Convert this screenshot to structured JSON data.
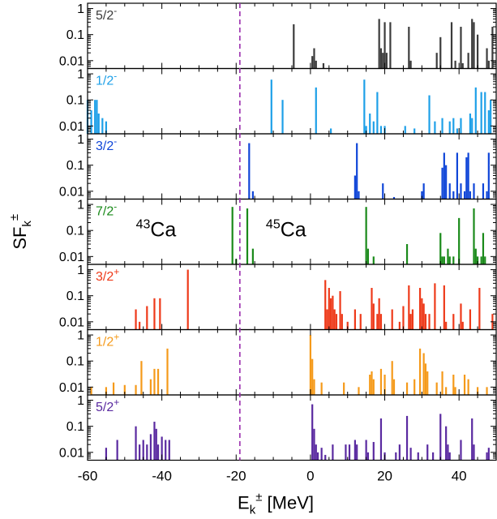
{
  "chart_data": {
    "type": "bar",
    "xlabel": "E_k^± [MeV]",
    "ylabel": "SF_k^±",
    "xlim": [
      -60,
      50
    ],
    "ylim": [
      0.005,
      1.6
    ],
    "yscale": "log",
    "x_ticks": [
      -60,
      -40,
      -20,
      0,
      20,
      40
    ],
    "x_tick_labels": [
      "-60",
      "-40",
      "-20",
      "0",
      "20",
      "40"
    ],
    "y_ticks": [
      0.01,
      0.1,
      1
    ],
    "y_tick_labels": [
      "0.01",
      "0.1",
      "1"
    ],
    "fermi_line_x": -19,
    "fermi_line_color": "#9b2fae",
    "annotations": [
      {
        "text": "43",
        "sup": true,
        "after": "Ca",
        "x": -47,
        "panel": 3
      },
      {
        "text": "45",
        "sup": true,
        "after": "Ca",
        "x": -12,
        "panel": 3
      }
    ],
    "panels": [
      {
        "label": "5/2",
        "parity": "-",
        "color": "#3c3c3c",
        "bars": [
          [
            -4.5,
            0.25
          ],
          [
            0.5,
            0.015
          ],
          [
            1,
            0.03
          ],
          [
            1.5,
            0.01
          ],
          [
            3.5,
            0.008
          ],
          [
            18.5,
            0.4
          ],
          [
            19,
            0.03
          ],
          [
            19.5,
            0.02
          ],
          [
            20,
            0.3
          ],
          [
            20.5,
            0.02
          ],
          [
            21.5,
            0.3
          ],
          [
            26.5,
            0.2
          ],
          [
            27,
            0.01
          ],
          [
            34,
            0.02
          ],
          [
            35,
            0.08
          ],
          [
            38,
            0.3
          ],
          [
            39,
            0.01
          ],
          [
            40.5,
            0.2
          ],
          [
            41,
            0.008
          ],
          [
            42.5,
            0.02
          ],
          [
            43.5,
            0.4
          ],
          [
            44,
            0.3
          ],
          [
            45,
            0.1
          ],
          [
            47.5,
            0.03
          ],
          [
            48,
            0.01
          ],
          [
            49,
            0.2
          ]
        ]
      },
      {
        "label": "1/2",
        "parity": "-",
        "color": "#1ea0e8",
        "bars": [
          [
            -60,
            0.1
          ],
          [
            -59,
            0.04
          ],
          [
            -58,
            0.1
          ],
          [
            -57.5,
            0.1
          ],
          [
            -57,
            0.03
          ],
          [
            -56,
            0.02
          ],
          [
            -55,
            0.015
          ],
          [
            -10.5,
            0.6
          ],
          [
            -7.5,
            0.1
          ],
          [
            1.5,
            0.3
          ],
          [
            5.5,
            0.008
          ],
          [
            14.5,
            0.6
          ],
          [
            15,
            0.01
          ],
          [
            16,
            0.03
          ],
          [
            17,
            0.015
          ],
          [
            18,
            0.2
          ],
          [
            19,
            0.01
          ],
          [
            20,
            0.01
          ],
          [
            25.5,
            0.01
          ],
          [
            28,
            0.008
          ],
          [
            32,
            0.15
          ],
          [
            33.5,
            0.015
          ],
          [
            35.5,
            0.02
          ],
          [
            37.5,
            0.015
          ],
          [
            38.5,
            0.02
          ],
          [
            39.5,
            0.008
          ],
          [
            40.5,
            0.02
          ],
          [
            43,
            0.03
          ],
          [
            43.5,
            0.02
          ],
          [
            44.5,
            0.3
          ],
          [
            46,
            0.2
          ],
          [
            47,
            0.2
          ],
          [
            48,
            0.04
          ],
          [
            48.5,
            0.1
          ]
        ]
      },
      {
        "label": "3/2",
        "parity": "-",
        "color": "#1046d8",
        "bars": [
          [
            -16.5,
            0.7
          ],
          [
            -15.5,
            0.01
          ],
          [
            12,
            0.04
          ],
          [
            12.5,
            0.7
          ],
          [
            13,
            0.01
          ],
          [
            19.5,
            0.02
          ],
          [
            22.5,
            0.006
          ],
          [
            30,
            0.01
          ],
          [
            30.5,
            0.02
          ],
          [
            35.5,
            0.08
          ],
          [
            36,
            0.3
          ],
          [
            36.5,
            0.1
          ],
          [
            37.5,
            0.02
          ],
          [
            38.5,
            0.01
          ],
          [
            39.5,
            0.3
          ],
          [
            40.5,
            0.02
          ],
          [
            41.5,
            0.01
          ],
          [
            42,
            0.2
          ],
          [
            42.5,
            0.3
          ],
          [
            43,
            0.01
          ],
          [
            44,
            0.02
          ],
          [
            46.5,
            0.02
          ],
          [
            47.5,
            0.01
          ],
          [
            48,
            0.3
          ]
        ]
      },
      {
        "label": "7/2",
        "parity": "-",
        "color": "#1a8a1a",
        "bars": [
          [
            -21,
            0.8
          ],
          [
            -20,
            0.008
          ],
          [
            -17,
            0.7
          ],
          [
            -15.5,
            0.02
          ],
          [
            15,
            0.8
          ],
          [
            15.5,
            0.02
          ],
          [
            17,
            0.01
          ],
          [
            26,
            0.03
          ],
          [
            35,
            0.08
          ],
          [
            35.5,
            0.01
          ],
          [
            36,
            0.01
          ],
          [
            37,
            0.02
          ],
          [
            37.5,
            0.01
          ],
          [
            38.5,
            0.01
          ],
          [
            40,
            0.3
          ],
          [
            44,
            0.7
          ],
          [
            44.5,
            0.02
          ],
          [
            45,
            0.01
          ],
          [
            46,
            0.01
          ],
          [
            46.5,
            0.08
          ],
          [
            47,
            0.01
          ]
        ]
      },
      {
        "label": "3/2",
        "parity": "+",
        "color": "#ee3a1a",
        "bars": [
          [
            -47,
            0.03
          ],
          [
            -46,
            0.01
          ],
          [
            -44,
            0.04
          ],
          [
            -42,
            0.08
          ],
          [
            -40.5,
            0.08
          ],
          [
            -33,
            1
          ],
          [
            4,
            0.4
          ],
          [
            4.5,
            0.03
          ],
          [
            5,
            0.2
          ],
          [
            5.5,
            0.08
          ],
          [
            6,
            0.1
          ],
          [
            6.5,
            0.03
          ],
          [
            7,
            0.02
          ],
          [
            8,
            0.15
          ],
          [
            8.5,
            0.02
          ],
          [
            10,
            0.01
          ],
          [
            12,
            0.03
          ],
          [
            13.5,
            0.02
          ],
          [
            16.5,
            0.2
          ],
          [
            17,
            0.05
          ],
          [
            18,
            0.02
          ],
          [
            18.5,
            0.08
          ],
          [
            19,
            0.02
          ],
          [
            22,
            0.03
          ],
          [
            24,
            0.01
          ],
          [
            25,
            0.04
          ],
          [
            26.5,
            0.25
          ],
          [
            27,
            0.02
          ],
          [
            27.5,
            0.03
          ],
          [
            29.5,
            0.2
          ],
          [
            30,
            0.08
          ],
          [
            30.5,
            0.05
          ],
          [
            31,
            0.02
          ],
          [
            32,
            0.02
          ],
          [
            33.5,
            0.3
          ],
          [
            36,
            0.25
          ],
          [
            36.5,
            0.01
          ],
          [
            38.5,
            0.02
          ],
          [
            40.5,
            0.05
          ],
          [
            41,
            0.01
          ],
          [
            43,
            0.03
          ],
          [
            45.5,
            0.2
          ],
          [
            49,
            0.02
          ]
        ]
      },
      {
        "label": "1/2",
        "parity": "+",
        "color": "#f59a1a",
        "bars": [
          [
            -59,
            0.01
          ],
          [
            -55,
            0.01
          ],
          [
            -53,
            0.015
          ],
          [
            -50,
            0.012
          ],
          [
            -47,
            0.012
          ],
          [
            -45.5,
            0.1
          ],
          [
            -43,
            0.02
          ],
          [
            -42,
            0.05
          ],
          [
            -41,
            0.05
          ],
          [
            -38.5,
            0.3
          ],
          [
            0,
            1
          ],
          [
            0.5,
            0.12
          ],
          [
            1,
            0.02
          ],
          [
            3,
            0.015
          ],
          [
            9,
            0.015
          ],
          [
            13,
            0.01
          ],
          [
            16,
            0.03
          ],
          [
            16.5,
            0.04
          ],
          [
            17,
            0.02
          ],
          [
            19,
            0.05
          ],
          [
            20,
            0.03
          ],
          [
            22,
            0.1
          ],
          [
            22.5,
            0.02
          ],
          [
            26,
            0.015
          ],
          [
            28,
            0.02
          ],
          [
            29.5,
            0.3
          ],
          [
            30.5,
            0.2
          ],
          [
            31,
            0.08
          ],
          [
            31.5,
            0.04
          ],
          [
            34,
            0.015
          ],
          [
            35.5,
            0.04
          ],
          [
            36.5,
            0.01
          ],
          [
            38.5,
            0.03
          ],
          [
            39,
            0.01
          ],
          [
            41.5,
            0.03
          ],
          [
            42.5,
            0.02
          ],
          [
            45,
            0.01
          ],
          [
            47.5,
            0.01
          ]
        ]
      },
      {
        "label": "5/2",
        "parity": "+",
        "color": "#5a2aa0",
        "bars": [
          [
            -55,
            0.015
          ],
          [
            -52,
            0.03
          ],
          [
            -47,
            0.1
          ],
          [
            -46,
            0.02
          ],
          [
            -45,
            0.03
          ],
          [
            -44,
            0.02
          ],
          [
            -43,
            0.05
          ],
          [
            -42,
            0.15
          ],
          [
            -41.5,
            0.08
          ],
          [
            -41,
            0.02
          ],
          [
            -40,
            0.04
          ],
          [
            -39,
            0.03
          ],
          [
            -38,
            0.03
          ],
          [
            0.5,
            0.7
          ],
          [
            1,
            0.08
          ],
          [
            1.5,
            0.02
          ],
          [
            2,
            0.01
          ],
          [
            3,
            0.015
          ],
          [
            4,
            0.008
          ],
          [
            6,
            0.02
          ],
          [
            9.5,
            0.02
          ],
          [
            10.5,
            0.02
          ],
          [
            12,
            0.03
          ],
          [
            12.5,
            0.02
          ],
          [
            15,
            0.03
          ],
          [
            15.5,
            0.01
          ],
          [
            17,
            0.025
          ],
          [
            19,
            0.2
          ],
          [
            20,
            0.01
          ],
          [
            23,
            0.01
          ],
          [
            24,
            0.02
          ],
          [
            26,
            0.25
          ],
          [
            27,
            0.015
          ],
          [
            29,
            0.01
          ],
          [
            31.5,
            0.02
          ],
          [
            33,
            0.01
          ],
          [
            35,
            0.3
          ],
          [
            36.5,
            0.1
          ],
          [
            37,
            0.02
          ],
          [
            37.5,
            0.01
          ],
          [
            40.5,
            0.03
          ],
          [
            43.5,
            0.2
          ],
          [
            44,
            0.02
          ],
          [
            47.5,
            0.01
          ],
          [
            48,
            0.015
          ]
        ]
      }
    ]
  }
}
